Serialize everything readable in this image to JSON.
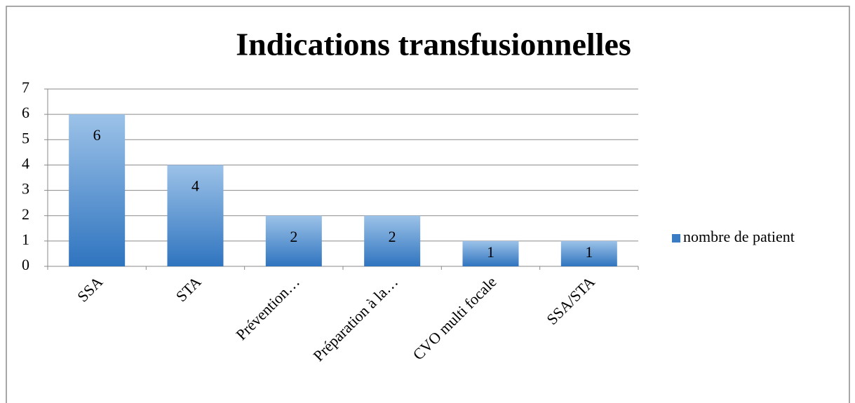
{
  "chart_data": {
    "type": "bar",
    "title": "Indications transfusionnelles",
    "categories": [
      "SSA",
      "STA",
      "Prévention…",
      "Préparation à la…",
      "CVO multi focale",
      "SSA/STA"
    ],
    "series": [
      {
        "name": "nombre de patient",
        "color": "#3a7cc4",
        "values": [
          6,
          4,
          2,
          2,
          1,
          1
        ]
      }
    ],
    "ylim": [
      0,
      7
    ],
    "yticks": [
      0,
      1,
      2,
      3,
      4,
      5,
      6,
      7
    ],
    "grid": true,
    "legend": "right"
  }
}
